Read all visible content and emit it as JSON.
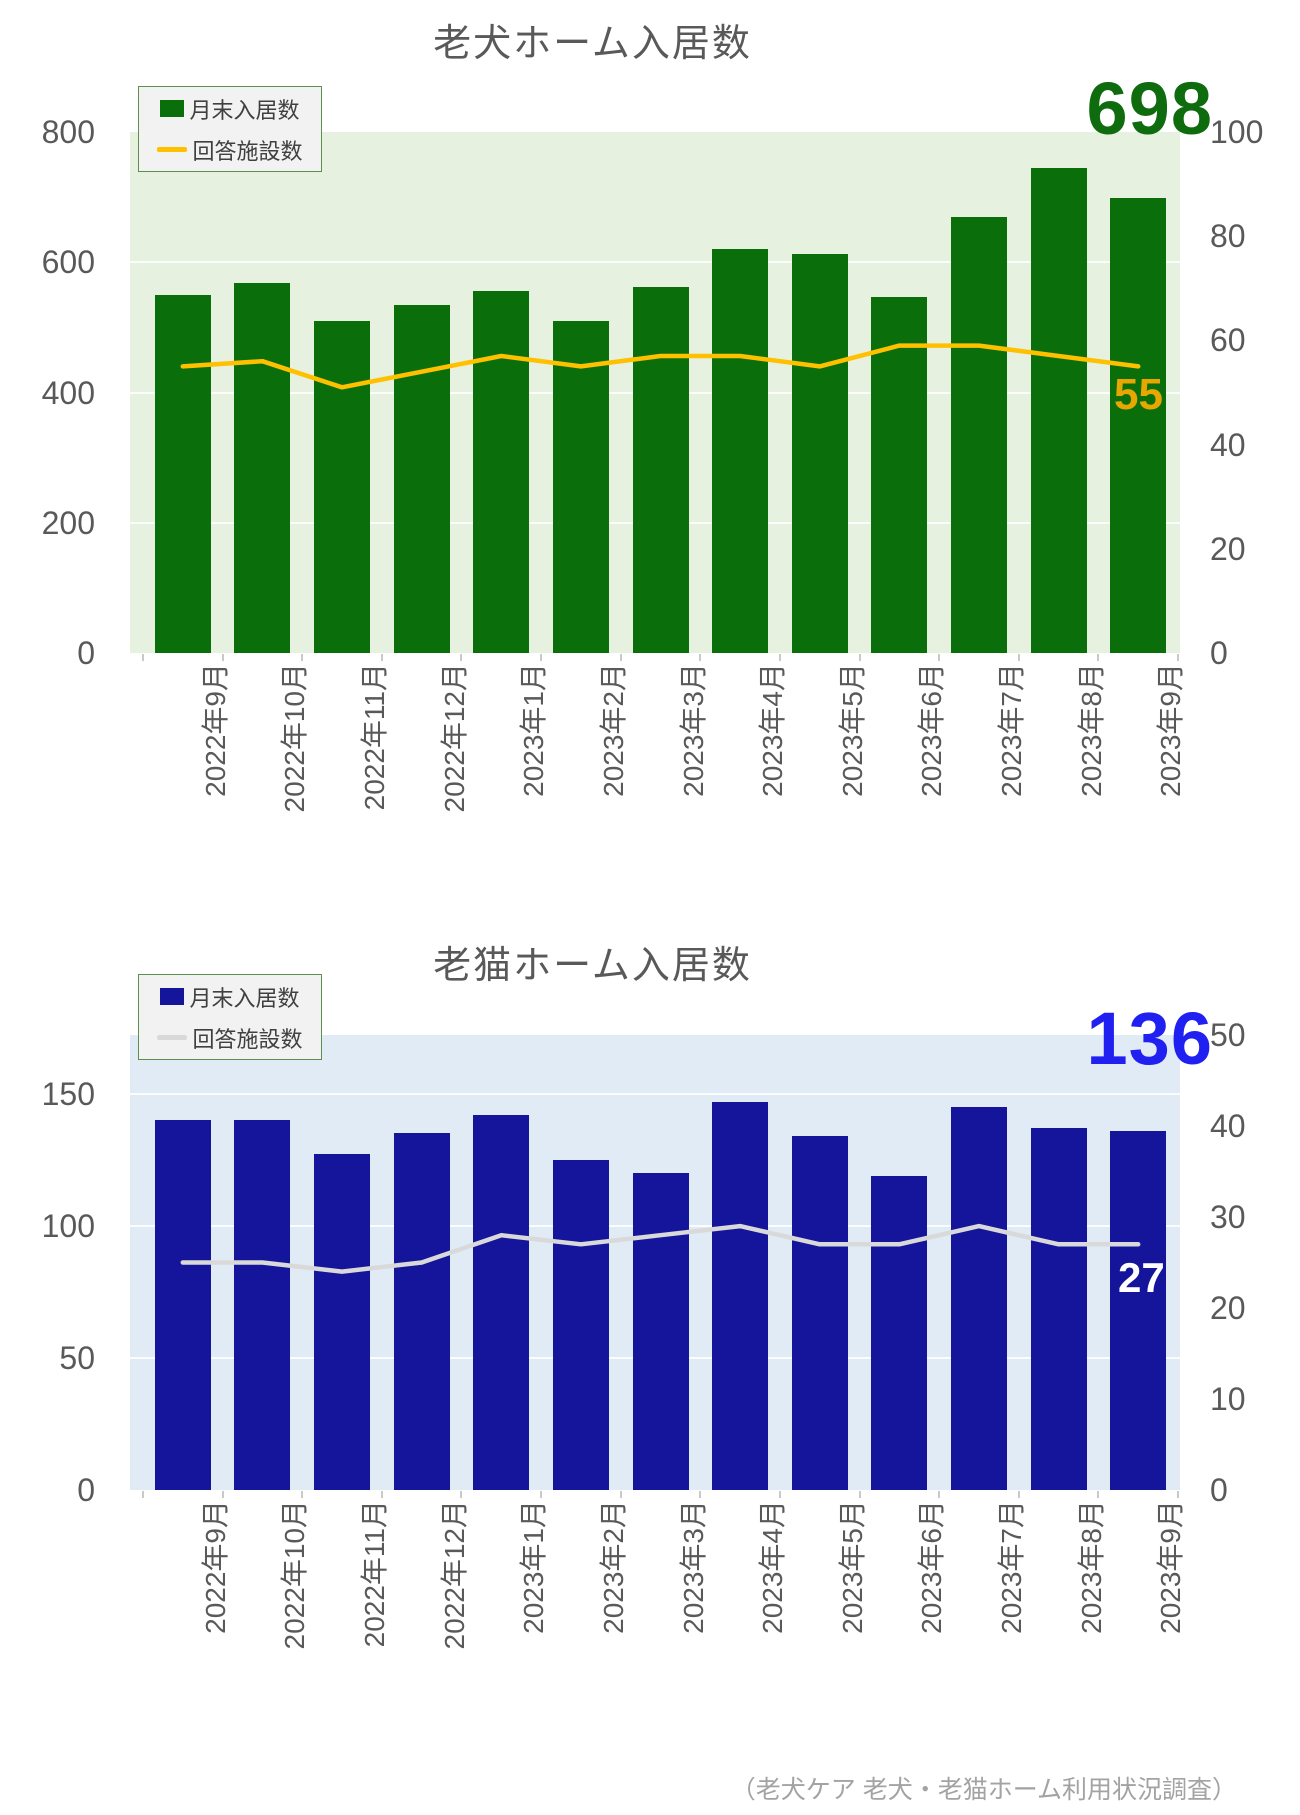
{
  "page": {
    "footer": "（老犬ケア 老犬・老猫ホーム利用状況調査）"
  },
  "chart_data": [
    {
      "type": "bar",
      "subtype": "combo-bar-line",
      "title": "老犬ホーム入居数",
      "categories": [
        "2022年9月",
        "2022年10月",
        "2022年11月",
        "2022年12月",
        "2023年1月",
        "2023年2月",
        "2023年3月",
        "2023年4月",
        "2023年5月",
        "2023年6月",
        "2023年7月",
        "2023年8月",
        "2023年9月"
      ],
      "series": [
        {
          "name": "月末入居数",
          "type": "bar",
          "axis": "left",
          "values": [
            550,
            568,
            510,
            534,
            556,
            510,
            562,
            620,
            612,
            547,
            669,
            744,
            698
          ]
        },
        {
          "name": "回答施設数",
          "type": "line",
          "axis": "right",
          "values": [
            55,
            56,
            51,
            54,
            57,
            55,
            57,
            57,
            55,
            59,
            59,
            57,
            55
          ]
        }
      ],
      "left_axis": {
        "ticks": [
          0,
          200,
          400,
          600,
          800
        ],
        "plot_top_value": 800
      },
      "right_axis": {
        "ticks": [
          0,
          20,
          40,
          60,
          80,
          100
        ],
        "plot_top_value": 100
      },
      "bar_end_label": "698",
      "line_end_label": "55",
      "legend_position": "top-left",
      "grid": true,
      "colors": {
        "bar": "#0a6e0a",
        "line": "#ffc000",
        "plot_bg": "#e7f1df",
        "big_label": "#0e6b0e",
        "line_label": "#e7a600"
      }
    },
    {
      "type": "bar",
      "subtype": "combo-bar-line",
      "title": "老猫ホーム入居数",
      "categories": [
        "2022年9月",
        "2022年10月",
        "2022年11月",
        "2022年12月",
        "2023年1月",
        "2023年2月",
        "2023年3月",
        "2023年4月",
        "2023年5月",
        "2023年6月",
        "2023年7月",
        "2023年8月",
        "2023年9月"
      ],
      "series": [
        {
          "name": "月末入居数",
          "type": "bar",
          "axis": "left",
          "values": [
            140,
            140,
            127,
            135,
            142,
            125,
            120,
            147,
            134,
            119,
            145,
            137,
            136
          ]
        },
        {
          "name": "回答施設数",
          "type": "line",
          "axis": "right",
          "values": [
            25,
            25,
            24,
            25,
            28,
            27,
            28,
            29,
            27,
            27,
            29,
            27,
            27
          ]
        }
      ],
      "left_axis": {
        "ticks": [
          0,
          50,
          100,
          150
        ],
        "plot_top_value": 172.2
      },
      "right_axis": {
        "ticks": [
          0,
          10,
          20,
          30,
          40,
          50
        ],
        "plot_top_value": 50
      },
      "bar_end_label": "136",
      "line_end_label": "27",
      "legend_position": "top-left",
      "grid": true,
      "colors": {
        "bar": "#15159c",
        "line": "#d9d9d9",
        "plot_bg": "#e0ebf5",
        "big_label": "#2020f0",
        "line_label": "#ffffff"
      }
    }
  ],
  "ui": {
    "grid_color": "rgba(255,255,255,0.85)",
    "legend_bg": "#f2f2f2",
    "legend_border": "#5f8f4f"
  }
}
